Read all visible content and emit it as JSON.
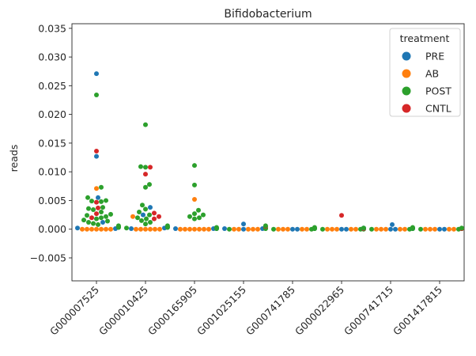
{
  "chart_data": {
    "type": "swarm",
    "title": "Bifidobacterium",
    "xlabel": "",
    "ylabel": "reads",
    "ylim": [
      -0.009,
      0.0358
    ],
    "yticks": [
      -0.005,
      0.0,
      0.005,
      0.01,
      0.015,
      0.02,
      0.025,
      0.03,
      0.035
    ],
    "ytick_labels": [
      "−0.005",
      "0.000",
      "0.005",
      "0.010",
      "0.015",
      "0.020",
      "0.025",
      "0.030",
      "0.035"
    ],
    "categories": [
      "G000007525",
      "G000010425",
      "G000165905",
      "G001025155",
      "G000741785",
      "G000022965",
      "G000741715",
      "G001417815"
    ],
    "legend": {
      "title": "treatment",
      "placement": "top-right",
      "entries": [
        {
          "label": "PRE",
          "color": "#1f77b4"
        },
        {
          "label": "AB",
          "color": "#ff7f0e"
        },
        {
          "label": "POST",
          "color": "#2ca02c"
        },
        {
          "label": "CNTL",
          "color": "#d62728"
        }
      ]
    },
    "series": [
      {
        "name": "PRE",
        "color": "#1f77b4",
        "points": [
          [
            0,
            0.0271
          ],
          [
            0,
            0.0127
          ],
          [
            0,
            0.0055
          ],
          [
            0,
            0.0003
          ],
          [
            0,
            0.0002
          ],
          [
            0,
            0.0001
          ],
          [
            0,
            0.0012
          ],
          [
            1,
            0.0038
          ],
          [
            1,
            0.0025
          ],
          [
            1,
            0.0003
          ],
          [
            1,
            0.0002
          ],
          [
            1,
            0.0001
          ],
          [
            2,
            0.0002
          ],
          [
            2,
            0.0001
          ],
          [
            2,
            0.0001
          ],
          [
            2,
            0.0001
          ],
          [
            3,
            0.0009
          ],
          [
            3,
            0.0001
          ],
          [
            3,
            0.0001
          ],
          [
            3,
            0.0
          ],
          [
            4,
            0.0001
          ],
          [
            4,
            0.0
          ],
          [
            4,
            0.0
          ],
          [
            5,
            0.0002
          ],
          [
            5,
            0.0001
          ],
          [
            5,
            0.0001
          ],
          [
            5,
            0.0
          ],
          [
            5,
            0.0
          ],
          [
            6,
            0.0008
          ],
          [
            6,
            0.0002
          ],
          [
            6,
            0.0001
          ],
          [
            6,
            0.0
          ],
          [
            6,
            0.0
          ],
          [
            7,
            0.0001
          ],
          [
            7,
            0.0
          ],
          [
            7,
            0.0
          ]
        ]
      },
      {
        "name": "AB",
        "color": "#ff7f0e",
        "points": [
          [
            0,
            0.0071
          ],
          [
            0,
            0.0
          ],
          [
            0,
            0.0
          ],
          [
            0,
            0.0
          ],
          [
            0,
            0.0
          ],
          [
            0,
            0.0
          ],
          [
            0,
            0.0
          ],
          [
            0,
            0.0
          ],
          [
            1,
            0.0022
          ],
          [
            1,
            0.0
          ],
          [
            1,
            0.0
          ],
          [
            1,
            0.0
          ],
          [
            1,
            0.0
          ],
          [
            1,
            0.0
          ],
          [
            1,
            0.0
          ],
          [
            2,
            0.0052
          ],
          [
            2,
            0.0
          ],
          [
            2,
            0.0
          ],
          [
            2,
            0.0
          ],
          [
            2,
            0.0
          ],
          [
            2,
            0.0
          ],
          [
            2,
            0.0
          ],
          [
            2,
            0.0
          ],
          [
            3,
            0.0
          ],
          [
            3,
            0.0
          ],
          [
            3,
            0.0
          ],
          [
            3,
            0.0
          ],
          [
            3,
            0.0
          ],
          [
            4,
            0.0
          ],
          [
            4,
            0.0
          ],
          [
            4,
            0.0
          ],
          [
            4,
            0.0
          ],
          [
            4,
            0.0
          ],
          [
            5,
            0.0
          ],
          [
            5,
            0.0
          ],
          [
            5,
            0.0
          ],
          [
            5,
            0.0
          ],
          [
            5,
            0.0
          ],
          [
            6,
            0.0
          ],
          [
            6,
            0.0
          ],
          [
            6,
            0.0
          ],
          [
            6,
            0.0
          ],
          [
            6,
            0.0
          ],
          [
            7,
            0.0
          ],
          [
            7,
            0.0
          ],
          [
            7,
            0.0
          ],
          [
            7,
            0.0
          ],
          [
            7,
            0.0
          ]
        ]
      },
      {
        "name": "POST",
        "color": "#2ca02c",
        "points": [
          [
            0,
            0.0234
          ],
          [
            0,
            0.0073
          ],
          [
            0,
            0.0055
          ],
          [
            0,
            0.005
          ],
          [
            0,
            0.0049
          ],
          [
            0,
            0.0048
          ],
          [
            0,
            0.0038
          ],
          [
            0,
            0.0036
          ],
          [
            0,
            0.0034
          ],
          [
            0,
            0.003
          ],
          [
            0,
            0.0026
          ],
          [
            0,
            0.0024
          ],
          [
            0,
            0.0022
          ],
          [
            0,
            0.002
          ],
          [
            0,
            0.0018
          ],
          [
            0,
            0.0016
          ],
          [
            0,
            0.0014
          ],
          [
            0,
            0.0012
          ],
          [
            0,
            0.001
          ],
          [
            0,
            0.0008
          ],
          [
            0,
            0.0006
          ],
          [
            0,
            0.0005
          ],
          [
            0,
            0.0004
          ],
          [
            0,
            0.0003
          ],
          [
            1,
            0.0182
          ],
          [
            1,
            0.0109
          ],
          [
            1,
            0.0108
          ],
          [
            1,
            0.0078
          ],
          [
            1,
            0.0073
          ],
          [
            1,
            0.0042
          ],
          [
            1,
            0.0035
          ],
          [
            1,
            0.003
          ],
          [
            1,
            0.0025
          ],
          [
            1,
            0.002
          ],
          [
            1,
            0.0018
          ],
          [
            1,
            0.0015
          ],
          [
            1,
            0.0012
          ],
          [
            1,
            0.0009
          ],
          [
            1,
            0.0006
          ],
          [
            1,
            0.0004
          ],
          [
            1,
            0.0003
          ],
          [
            1,
            0.0002
          ],
          [
            2,
            0.0111
          ],
          [
            2,
            0.0077
          ],
          [
            2,
            0.0033
          ],
          [
            2,
            0.0027
          ],
          [
            2,
            0.0025
          ],
          [
            2,
            0.0022
          ],
          [
            2,
            0.002
          ],
          [
            2,
            0.0018
          ],
          [
            2,
            0.0003
          ],
          [
            2,
            0.0002
          ],
          [
            2,
            0.0001
          ],
          [
            2,
            0.0001
          ],
          [
            3,
            0.0006
          ],
          [
            3,
            0.0003
          ],
          [
            3,
            0.0001
          ],
          [
            3,
            0.0001
          ],
          [
            3,
            0.0
          ],
          [
            4,
            0.0003
          ],
          [
            4,
            0.0002
          ],
          [
            4,
            0.0001
          ],
          [
            4,
            0.0001
          ],
          [
            4,
            0.0
          ],
          [
            4,
            0.0
          ],
          [
            5,
            0.0002
          ],
          [
            5,
            0.0001
          ],
          [
            5,
            0.0001
          ],
          [
            5,
            0.0
          ],
          [
            5,
            0.0
          ],
          [
            5,
            0.0
          ],
          [
            6,
            0.0003
          ],
          [
            6,
            0.0002
          ],
          [
            6,
            0.0001
          ],
          [
            6,
            0.0001
          ],
          [
            6,
            0.0
          ],
          [
            6,
            0.0
          ],
          [
            7,
            0.0002
          ],
          [
            7,
            0.0001
          ],
          [
            7,
            0.0001
          ],
          [
            7,
            0.0
          ],
          [
            7,
            0.0
          ]
        ]
      },
      {
        "name": "CNTL",
        "color": "#d62728",
        "points": [
          [
            0,
            0.0136
          ],
          [
            0,
            0.0047
          ],
          [
            0,
            0.0037
          ],
          [
            0,
            0.0027
          ],
          [
            0,
            0.002
          ],
          [
            1,
            0.0108
          ],
          [
            1,
            0.0096
          ],
          [
            1,
            0.0028
          ],
          [
            1,
            0.0022
          ],
          [
            1,
            0.0018
          ],
          [
            3,
            0.0005
          ],
          [
            5,
            0.0024
          ],
          [
            5,
            0.0001
          ],
          [
            7,
            0.0001
          ]
        ]
      }
    ]
  }
}
